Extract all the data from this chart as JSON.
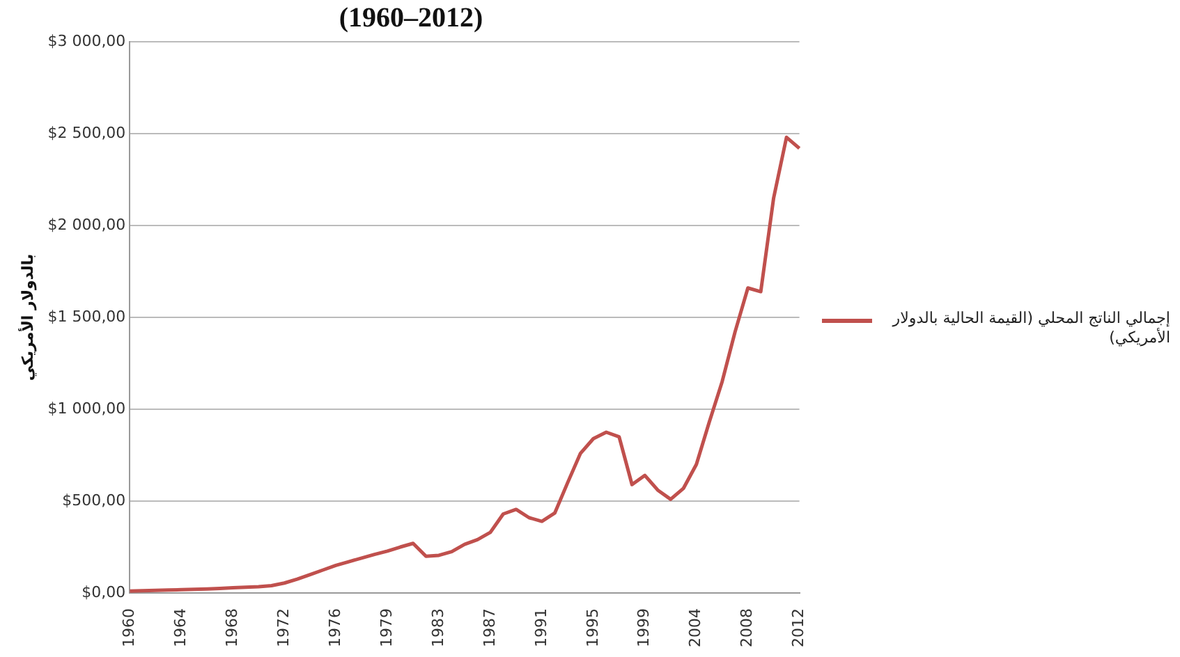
{
  "chart_data": {
    "type": "line",
    "title": "(1960–2012)",
    "ylabel": "بالدولار الأمريكي",
    "categories": [
      "1960",
      null,
      null,
      null,
      "1964",
      null,
      null,
      null,
      "1968",
      null,
      null,
      null,
      "1972",
      null,
      null,
      null,
      "1976",
      null,
      null,
      null,
      "1979",
      null,
      null,
      null,
      "1983",
      null,
      null,
      null,
      "1987",
      null,
      null,
      null,
      "1991",
      null,
      null,
      null,
      "1995",
      null,
      null,
      null,
      "1999",
      null,
      null,
      null,
      "2004",
      null,
      null,
      null,
      "2008",
      null,
      null,
      null,
      "2012"
    ],
    "series": [
      {
        "name": "إجمالي الناتج المحلي (القيمة الحالية بالدولار الأمريكي)",
        "color": "#c0504d",
        "values": [
          10,
          12,
          14,
          16,
          18,
          20,
          22,
          25,
          28,
          31,
          34,
          40,
          54,
          75,
          100,
          125,
          150,
          170,
          190,
          210,
          228,
          250,
          270,
          200,
          205,
          225,
          265,
          290,
          330,
          430,
          455,
          410,
          390,
          435,
          600,
          760,
          840,
          875,
          850,
          590,
          640,
          560,
          510,
          570,
          700,
          930,
          1150,
          1420,
          1660,
          1640,
          2150,
          2480,
          2420
        ]
      }
    ],
    "ylim": [
      0,
      3000
    ],
    "yticks": [
      {
        "value": 0,
        "label": "$0,00"
      },
      {
        "value": 500,
        "label": "$500,00"
      },
      {
        "value": 1000,
        "label": "$1 000,00"
      },
      {
        "value": 1500,
        "label": "$1 500,00"
      },
      {
        "value": 2000,
        "label": "$2 000,00"
      },
      {
        "value": 2500,
        "label": "$2 500,00"
      },
      {
        "value": 3000,
        "label": "$3 000,00"
      }
    ],
    "grid": "y",
    "legend": "right",
    "marker": "none",
    "line_style": "solid"
  }
}
